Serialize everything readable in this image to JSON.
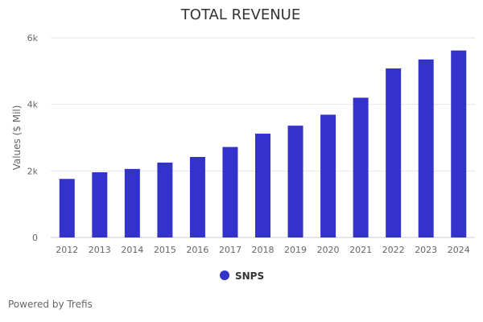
{
  "chart_data": {
    "type": "bar",
    "title": "TOTAL REVENUE",
    "xlabel": "",
    "ylabel": "Values ($ Mil)",
    "categories": [
      "2012",
      "2013",
      "2014",
      "2015",
      "2016",
      "2017",
      "2018",
      "2019",
      "2020",
      "2021",
      "2022",
      "2023",
      "2024"
    ],
    "series": [
      {
        "name": "SNPS",
        "color": "#3333cc",
        "values": [
          1760,
          1960,
          2060,
          2250,
          2420,
          2720,
          3120,
          3360,
          3690,
          4200,
          5080,
          5350,
          5620
        ]
      }
    ],
    "ylim": [
      0,
      6000
    ],
    "yticks": [
      {
        "value": 0,
        "label": "0"
      },
      {
        "value": 2000,
        "label": "2k"
      },
      {
        "value": 4000,
        "label": "4k"
      },
      {
        "value": 6000,
        "label": "6k"
      }
    ],
    "grid": true,
    "legend_position": "bottom-center"
  },
  "credits": {
    "text": "Powered by Trefis"
  }
}
